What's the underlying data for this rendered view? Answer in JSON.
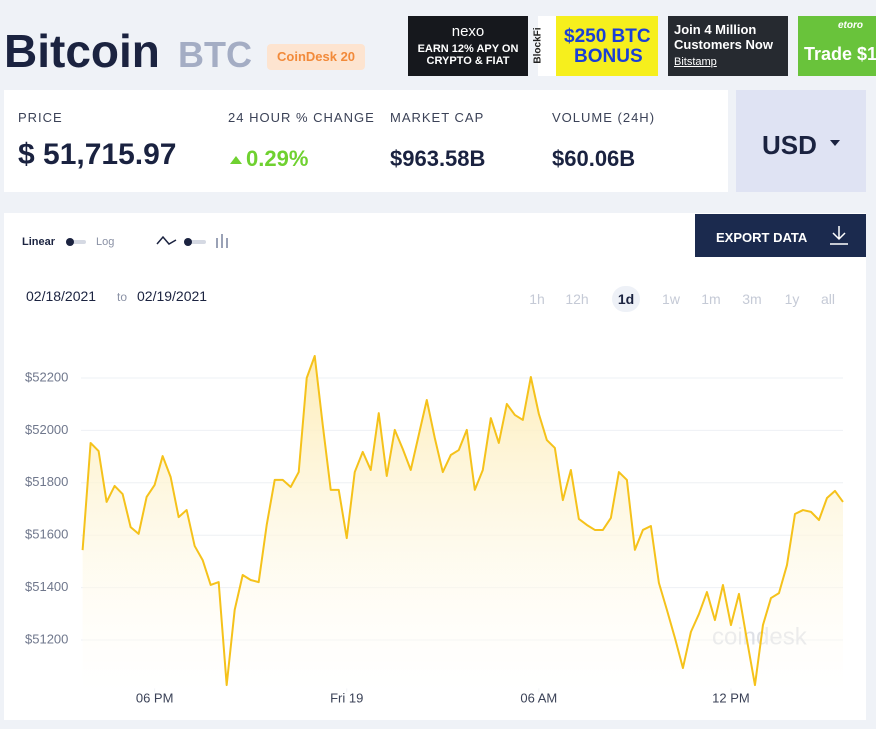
{
  "header": {
    "title": "Bitcoin",
    "symbol": "BTC",
    "badge": "CoinDesk 20"
  },
  "ads": [
    {
      "lines": [
        "nexo",
        "EARN 12% APY ON",
        "CRYPTO & FIAT"
      ]
    },
    {
      "lines": [
        "BlockFi",
        "$250 BTC",
        "BONUS"
      ]
    },
    {
      "lines": [
        "Join 4 Million",
        "Customers Now",
        "Bitstamp"
      ]
    },
    {
      "lines": [
        "etoro",
        "Trade $1"
      ]
    }
  ],
  "stats": [
    {
      "label": "PRICE",
      "value": "$ 51,715.97"
    },
    {
      "label": "24 HOUR % CHANGE",
      "value": "0.29%"
    },
    {
      "label": "MARKET CAP",
      "value": "$963.58B"
    },
    {
      "label": "VOLUME (24H)",
      "value": "$60.06B"
    }
  ],
  "currency": "USD",
  "controls": {
    "scale_options": [
      "Linear",
      "Log"
    ],
    "export": "EXPORT DATA",
    "date_from": "02/18/2021",
    "date_sep": "to",
    "date_to": "02/19/2021",
    "ranges": [
      "1h",
      "12h",
      "1d",
      "1w",
      "1m",
      "3m",
      "1y",
      "all"
    ],
    "selected_range": "1d"
  },
  "chart_data": {
    "type": "line",
    "watermark": "coindesk",
    "grid": true,
    "x": [
      15.75,
      16,
      16.25,
      16.5,
      16.75,
      17,
      17.25,
      17.5,
      17.75,
      18,
      18.25,
      18.5,
      18.75,
      19,
      19.25,
      19.5,
      19.75,
      20,
      20.25,
      20.5,
      20.75,
      21,
      21.25,
      21.5,
      21.75,
      22,
      22.25,
      22.5,
      22.75,
      23,
      23.25,
      23.5,
      23.75,
      24,
      24.25,
      24.5,
      24.75,
      25,
      25.25,
      25.5,
      25.75,
      26,
      26.25,
      26.5,
      26.75,
      27,
      27.25,
      27.5,
      27.75,
      28,
      28.25,
      28.5,
      28.75,
      29,
      29.25,
      29.5,
      29.75,
      30,
      30.25,
      30.5,
      30.75,
      31,
      31.25,
      31.5,
      31.75,
      32,
      32.25,
      32.5,
      32.75,
      33,
      33.25,
      33.5,
      33.75,
      34,
      34.25,
      34.5,
      34.75,
      35,
      35.25,
      35.5,
      35.75,
      36,
      36.25,
      36.5,
      36.75,
      37,
      37.25,
      37.5,
      37.75,
      38,
      38.25,
      38.5,
      38.75,
      39,
      39.25,
      39.5
    ],
    "series": [
      {
        "color": "#f5c21b",
        "values": [
          51543,
          51952,
          51921,
          51727,
          51788,
          51757,
          51631,
          51605,
          51746,
          51792,
          51902,
          51822,
          51669,
          51696,
          51559,
          51505,
          51410,
          51421,
          51028,
          51315,
          51448,
          51429,
          51421,
          51639,
          51811,
          51811,
          51784,
          51841,
          52200,
          52284,
          52021,
          51773,
          51773,
          51589,
          51841,
          51918,
          51849,
          52066,
          51826,
          52002,
          51929,
          51849,
          51983,
          52116,
          51971,
          51841,
          51906,
          51925,
          52002,
          51773,
          51849,
          52047,
          51952,
          52101,
          52059,
          52040,
          52204,
          52063,
          51963,
          51933,
          51734,
          51849,
          51662,
          51639,
          51620,
          51620,
          51666,
          51841,
          51811,
          51544,
          51620,
          51635,
          51418,
          51315,
          51208,
          51093,
          51231,
          51299,
          51383,
          51276,
          51410,
          51257,
          51376,
          51200,
          51028,
          51257,
          51360,
          51379,
          51486,
          51681,
          51696,
          51689,
          51658,
          51742,
          51769,
          51727
        ]
      }
    ],
    "xlim": [
      15.7,
      39.5
    ],
    "xticks": [
      {
        "value": 18,
        "label": "06 PM"
      },
      {
        "value": 24,
        "label": "Fri 19"
      },
      {
        "value": 30,
        "label": "06 AM"
      },
      {
        "value": 36,
        "label": "12 PM"
      }
    ],
    "ylim": [
      51000,
      52400
    ],
    "yticks": [
      {
        "value": 51200,
        "label": "$51200"
      },
      {
        "value": 51400,
        "label": "$51400"
      },
      {
        "value": 51600,
        "label": "$51600"
      },
      {
        "value": 51800,
        "label": "$51800"
      },
      {
        "value": 52000,
        "label": "$52000"
      },
      {
        "value": 52200,
        "label": "$52200"
      }
    ]
  }
}
